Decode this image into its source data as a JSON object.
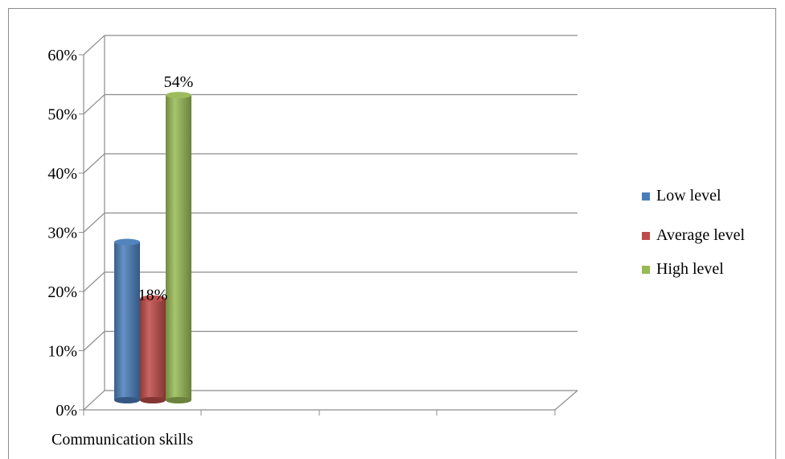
{
  "chart_data": {
    "type": "bar",
    "categories": [
      "Communication skills"
    ],
    "series": [
      {
        "name": "Low level",
        "values": [
          28
        ],
        "color": "#4a7ebb"
      },
      {
        "name": "Average level",
        "values": [
          18
        ],
        "color": "#be4b48"
      },
      {
        "name": "High level",
        "values": [
          54
        ],
        "color": "#98b954"
      }
    ],
    "data_labels": [
      "",
      "18%",
      "54%"
    ],
    "yticks": [
      "0%",
      "10%",
      "20%",
      "30%",
      "40%",
      "50%",
      "60%"
    ],
    "ylim": [
      0,
      60
    ],
    "grid": true,
    "legend": "right",
    "style": "3d-cylinder"
  }
}
